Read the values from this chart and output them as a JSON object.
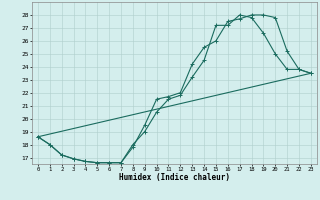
{
  "title": "",
  "xlabel": "Humidex (Indice chaleur)",
  "ylabel": "",
  "bg_color": "#d4eeed",
  "line_color": "#1a6b5e",
  "grid_color": "#b0cfcc",
  "ylim": [
    16.5,
    29.0
  ],
  "xlim": [
    -0.5,
    23.5
  ],
  "yticks": [
    17,
    18,
    19,
    20,
    21,
    22,
    23,
    24,
    25,
    26,
    27,
    28
  ],
  "xticks": [
    0,
    1,
    2,
    3,
    4,
    5,
    6,
    7,
    8,
    9,
    10,
    11,
    12,
    13,
    14,
    15,
    16,
    17,
    18,
    19,
    20,
    21,
    22,
    23
  ],
  "line1_x": [
    0,
    1,
    2,
    3,
    4,
    5,
    6,
    7,
    8,
    9,
    10,
    11,
    12,
    13,
    14,
    15,
    16,
    17,
    18,
    19,
    20,
    21,
    22,
    23
  ],
  "line1_y": [
    18.6,
    18.0,
    17.2,
    16.9,
    16.7,
    16.6,
    16.6,
    16.6,
    17.8,
    19.5,
    21.5,
    21.7,
    22.0,
    24.2,
    25.5,
    26.0,
    27.5,
    27.7,
    28.0,
    28.0,
    27.8,
    25.2,
    23.8,
    23.5
  ],
  "line2_x": [
    0,
    1,
    2,
    3,
    4,
    5,
    6,
    7,
    8,
    9,
    10,
    11,
    12,
    13,
    14,
    15,
    16,
    17,
    18,
    19,
    20,
    21,
    22,
    23
  ],
  "line2_y": [
    18.6,
    18.0,
    17.2,
    16.9,
    16.7,
    16.6,
    16.6,
    16.6,
    18.0,
    19.0,
    20.5,
    21.5,
    21.8,
    23.2,
    24.5,
    27.2,
    27.2,
    28.0,
    27.8,
    26.6,
    25.0,
    23.8,
    23.8,
    23.5
  ],
  "line3_x": [
    0,
    23
  ],
  "line3_y": [
    18.6,
    23.5
  ],
  "figsize": [
    3.2,
    2.0
  ],
  "dpi": 100
}
